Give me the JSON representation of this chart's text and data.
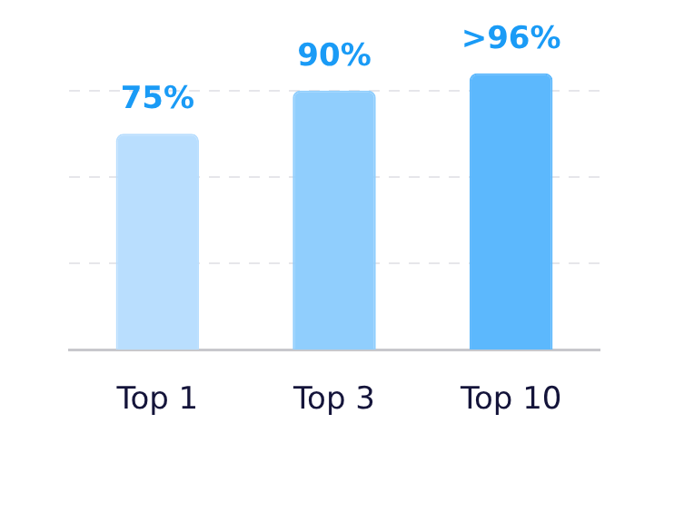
{
  "chart_data": {
    "type": "bar",
    "categories": [
      "Top 1",
      "Top 3",
      "Top 10"
    ],
    "values": [
      75,
      90,
      96
    ],
    "value_labels": [
      "75%",
      "90%",
      ">96%"
    ],
    "colors": [
      "#b9defe",
      "#90cefd",
      "#5cb8fd"
    ],
    "yticks": [
      {
        "value": 30,
        "label": null
      },
      {
        "value": 60,
        "label": null
      },
      {
        "value": 90,
        "label": null
      }
    ],
    "grid": "y",
    "legend": false
  }
}
